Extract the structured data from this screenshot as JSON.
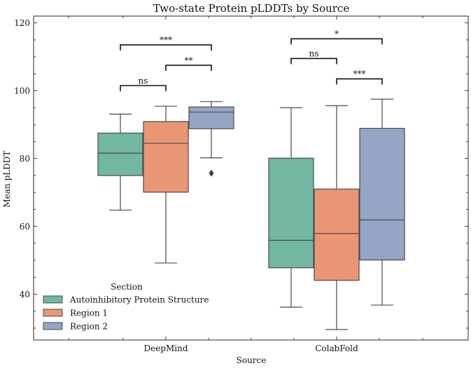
{
  "chart_data": {
    "type": "box",
    "title": "Two-state Protein pLDDTs by Source",
    "xlabel": "Source",
    "ylabel": "Mean pLDDT",
    "ylim": [
      26.5,
      122
    ],
    "yticks": [
      40,
      60,
      80,
      100,
      120
    ],
    "categories": [
      "DeepMind",
      "ColabFold"
    ],
    "legend": {
      "title": "Section",
      "position": "lower-left",
      "entries": [
        "Autoinhibitory Protein Structure",
        "Region 1",
        "Region 2"
      ]
    },
    "series": [
      {
        "name": "Autoinhibitory Protein Structure",
        "color": "#72b7a1",
        "boxes": [
          {
            "category": "DeepMind",
            "whisker_low": 64.8,
            "q1": 75.0,
            "median": 81.6,
            "q3": 87.5,
            "whisker_high": 93.1,
            "outliers": []
          },
          {
            "category": "ColabFold",
            "whisker_low": 36.2,
            "q1": 47.8,
            "median": 55.9,
            "q3": 80.1,
            "whisker_high": 95.0,
            "outliers": []
          }
        ]
      },
      {
        "name": "Region 1",
        "color": "#e99675",
        "boxes": [
          {
            "category": "DeepMind",
            "whisker_low": 49.2,
            "q1": 70.1,
            "median": 84.5,
            "q3": 90.9,
            "whisker_high": 95.4,
            "outliers": []
          },
          {
            "category": "ColabFold",
            "whisker_low": 29.6,
            "q1": 44.1,
            "median": 57.9,
            "q3": 71.0,
            "whisker_high": 95.6,
            "outliers": []
          }
        ]
      },
      {
        "name": "Region 2",
        "color": "#94a5c6",
        "boxes": [
          {
            "category": "DeepMind",
            "whisker_low": 80.2,
            "q1": 88.8,
            "median": 93.7,
            "q3": 95.2,
            "whisker_high": 96.8,
            "outliers": [
              75.7
            ]
          },
          {
            "category": "ColabFold",
            "whisker_low": 36.8,
            "q1": 50.1,
            "median": 61.9,
            "q3": 88.9,
            "whisker_high": 97.5,
            "outliers": []
          }
        ]
      }
    ],
    "annotations": [
      {
        "category": "DeepMind",
        "from": "Autoinhibitory Protein Structure",
        "to": "Region 1",
        "y": 101.5,
        "label": "ns"
      },
      {
        "category": "DeepMind",
        "from": "Region 1",
        "to": "Region 2",
        "y": 107.5,
        "label": "**"
      },
      {
        "category": "DeepMind",
        "from": "Autoinhibitory Protein Structure",
        "to": "Region 2",
        "y": 113.5,
        "label": "***"
      },
      {
        "category": "ColabFold",
        "from": "Region 1",
        "to": "Region 2",
        "y": 103.5,
        "label": "***"
      },
      {
        "category": "ColabFold",
        "from": "Autoinhibitory Protein Structure",
        "to": "Region 1",
        "y": 109.5,
        "label": "ns"
      },
      {
        "category": "ColabFold",
        "from": "Autoinhibitory Protein Structure",
        "to": "Region 2",
        "y": 115.3,
        "label": "*"
      }
    ]
  }
}
